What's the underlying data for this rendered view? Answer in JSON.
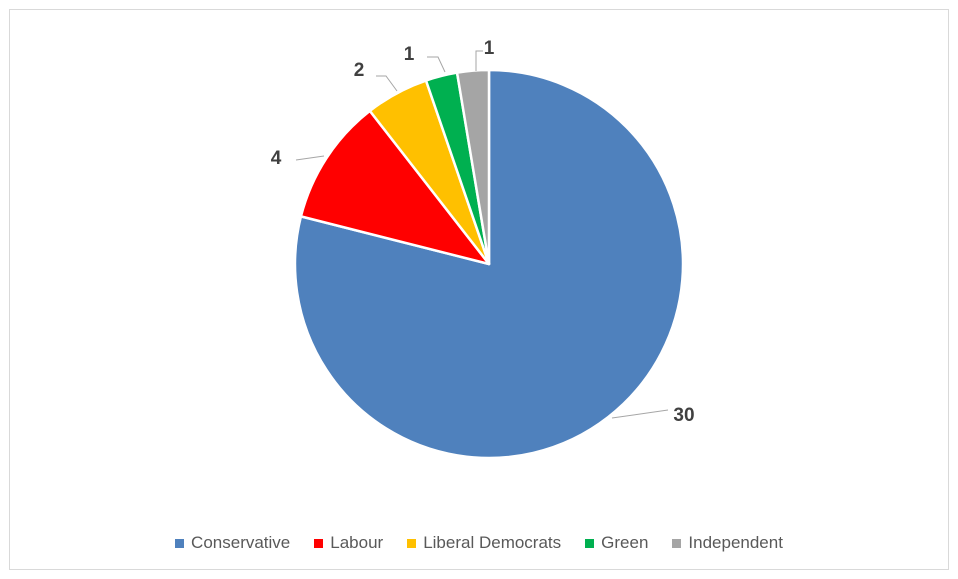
{
  "chart_data": {
    "type": "pie",
    "categories": [
      "Conservative",
      "Labour",
      "Liberal Democrats",
      "Green",
      "Independent"
    ],
    "values": [
      30,
      4,
      2,
      1,
      1
    ],
    "colors": [
      "#4f81bd",
      "#ff0000",
      "#ffc000",
      "#00b050",
      "#a5a5a5"
    ],
    "data_labels": [
      "30",
      "4",
      "2",
      "1",
      "1"
    ],
    "title": "",
    "legend_position": "bottom",
    "start_angle_deg": 0,
    "direction": "clockwise"
  }
}
